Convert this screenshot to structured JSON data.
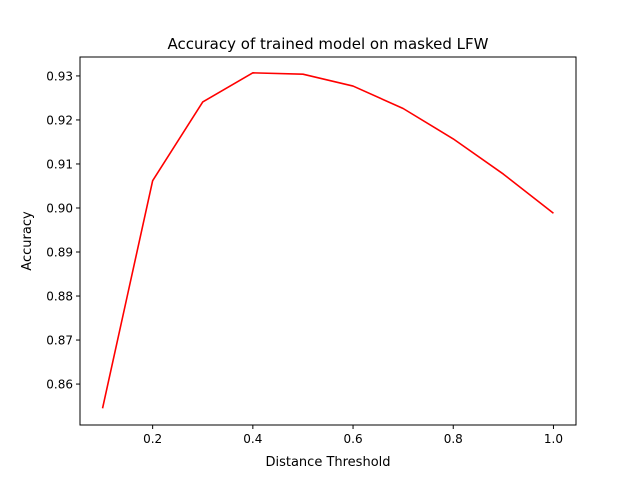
{
  "chart_data": {
    "type": "line",
    "title": "Accuracy of trained model on masked LFW",
    "xlabel": "Distance Threshold",
    "ylabel": "Accuracy",
    "xlim": [
      0.055,
      1.045
    ],
    "ylim": [
      0.8507,
      0.9343
    ],
    "x_ticks": [
      0.2,
      0.4,
      0.6,
      0.8,
      1.0
    ],
    "x_tick_labels": [
      "0.2",
      "0.4",
      "0.6",
      "0.8",
      "1.0"
    ],
    "y_ticks": [
      0.86,
      0.87,
      0.88,
      0.89,
      0.9,
      0.91,
      0.92,
      0.93
    ],
    "y_tick_labels": [
      "0.86",
      "0.87",
      "0.88",
      "0.89",
      "0.90",
      "0.91",
      "0.92",
      "0.93"
    ],
    "grid": false,
    "legend": "none",
    "series": [
      {
        "color": "#ff0000",
        "x": [
          0.1,
          0.2,
          0.3,
          0.4,
          0.5,
          0.6,
          0.7,
          0.8,
          0.9,
          1.0
        ],
        "y": [
          0.8545,
          0.9062,
          0.9241,
          0.9307,
          0.9304,
          0.9277,
          0.9226,
          0.9157,
          0.9077,
          0.8988
        ]
      }
    ]
  }
}
